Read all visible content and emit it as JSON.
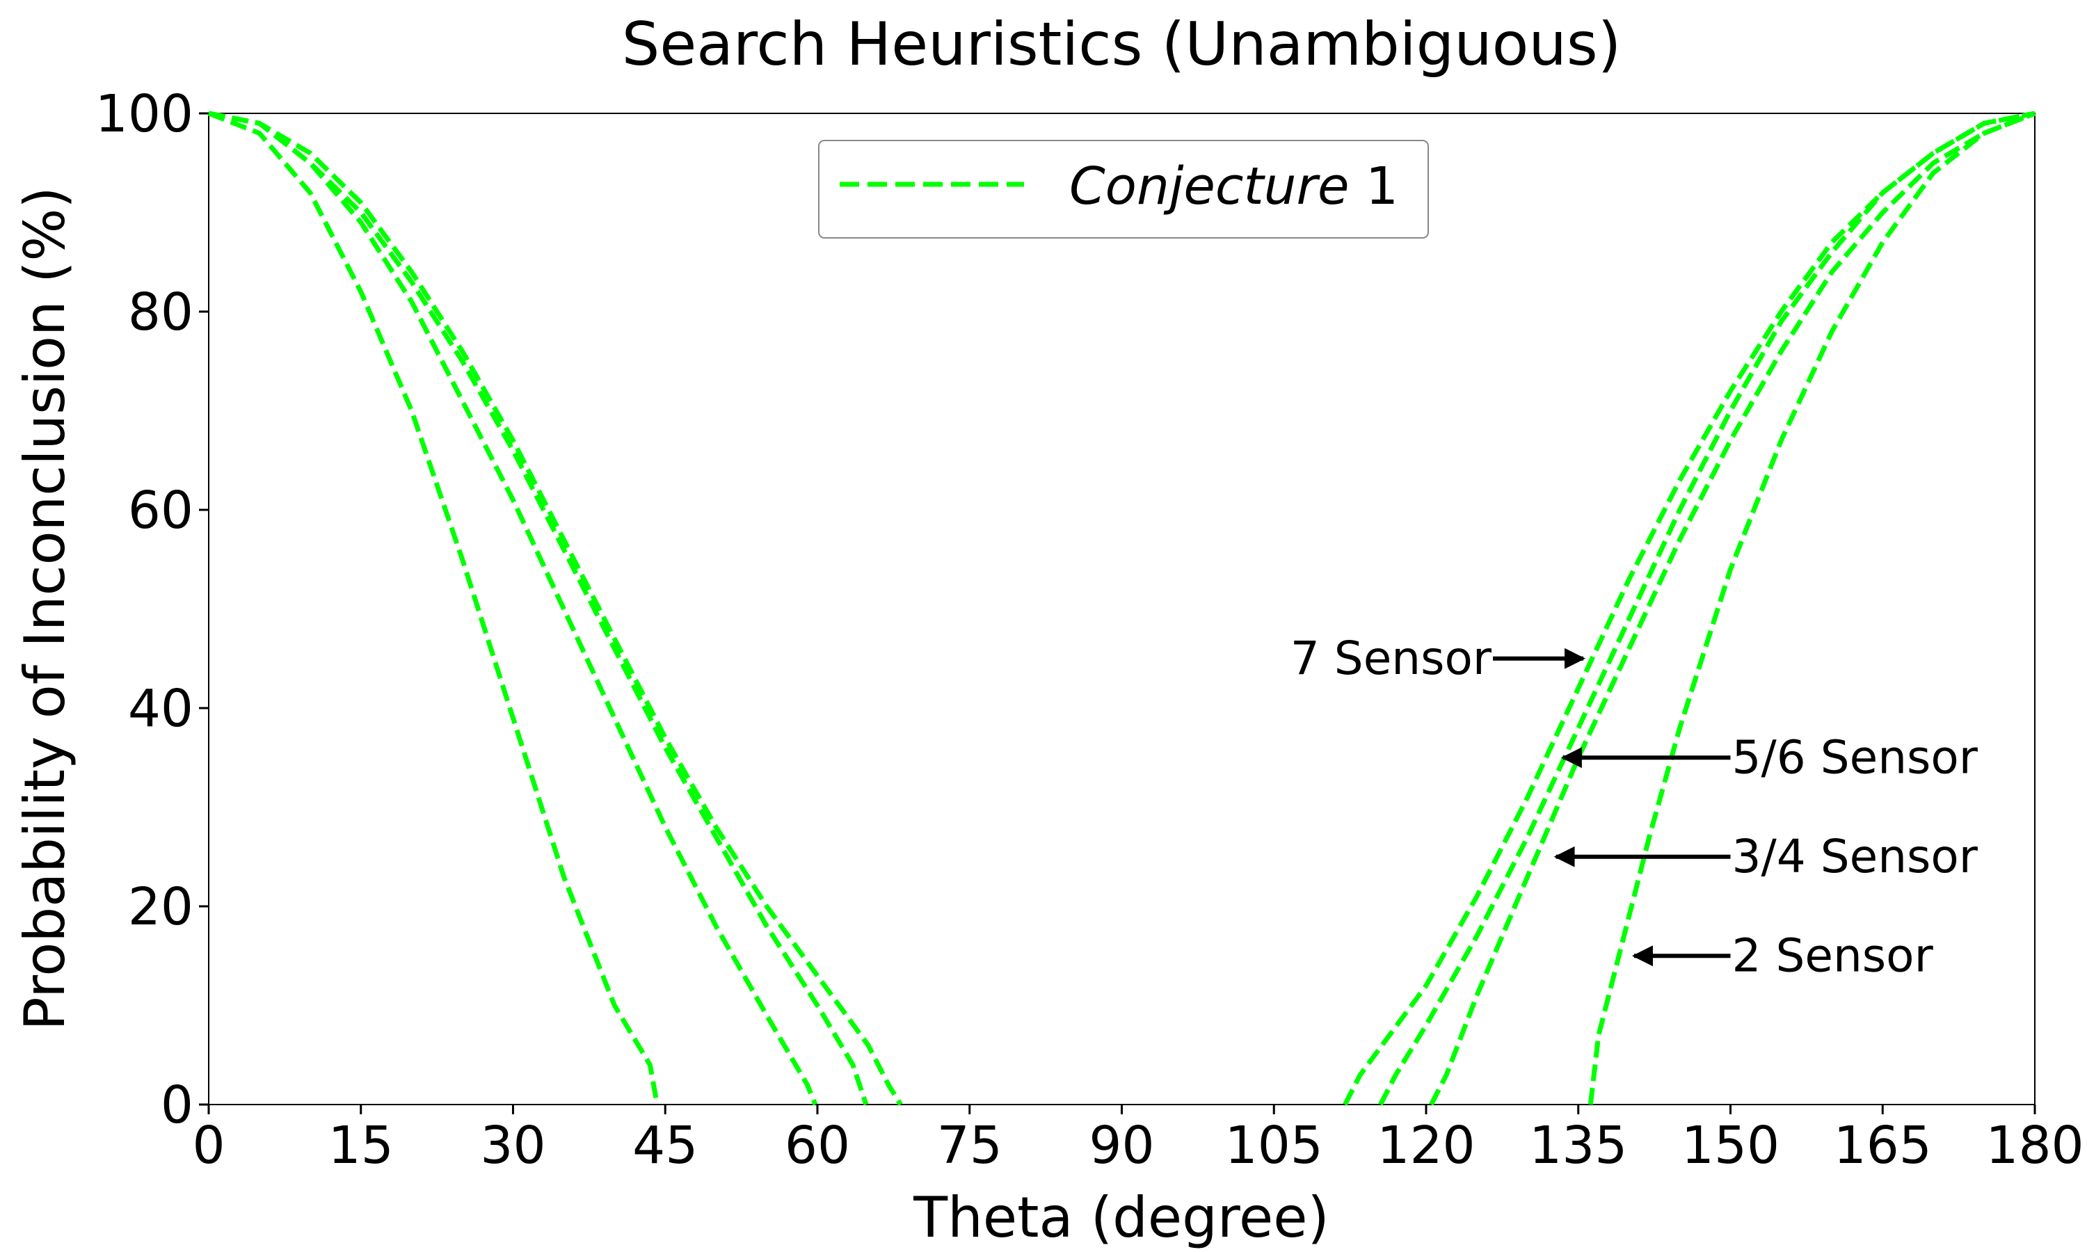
{
  "chart_data": {
    "type": "line",
    "title": "Search Heuristics (Unambiguous)",
    "xlabel": "Theta (degree)",
    "ylabel": "Probability of Inconclusion (%)",
    "xlim": [
      0,
      180
    ],
    "ylim": [
      0,
      100
    ],
    "xticks": [
      0,
      15,
      30,
      45,
      60,
      75,
      90,
      105,
      120,
      135,
      150,
      165,
      180
    ],
    "yticks": [
      0,
      20,
      40,
      60,
      80,
      100
    ],
    "grid": false,
    "legend": {
      "placement": "top-center",
      "entries": [
        {
          "italic_part": "Conjecture",
          "plain_part": " 1",
          "style": "dashed",
          "color": "#00ff00"
        }
      ]
    },
    "series_color": "#00ff00",
    "series": [
      {
        "x": [
          0,
          5,
          10,
          15,
          20,
          25,
          30,
          35,
          40,
          43.5,
          44.2
        ],
        "y": [
          100,
          98,
          92,
          82,
          70,
          55,
          39,
          23,
          10,
          4,
          0
        ]
      },
      {
        "x": [
          0,
          5,
          10,
          15,
          20,
          25,
          30,
          35,
          40,
          45,
          50,
          55,
          59,
          59.8
        ],
        "y": [
          100,
          99,
          95,
          89,
          81,
          71,
          61,
          50,
          39,
          28,
          18,
          9,
          2,
          0
        ]
      },
      {
        "x": [
          0,
          5,
          10,
          15,
          20,
          25,
          30,
          35,
          40,
          45,
          50,
          55,
          60,
          63.5,
          64.8
        ],
        "y": [
          100,
          99,
          95,
          90,
          83,
          75,
          66,
          56,
          46,
          36,
          27,
          18,
          10,
          4,
          0
        ]
      },
      {
        "x": [
          0,
          5,
          10,
          15,
          20,
          25,
          30,
          35,
          40,
          45,
          50,
          55,
          60,
          65,
          67,
          68.2
        ],
        "y": [
          100,
          99,
          96,
          91,
          84,
          76,
          67,
          57,
          47,
          37,
          28,
          20,
          13,
          6,
          2,
          0
        ]
      },
      {
        "x": [
          112,
          113.5,
          120,
          125,
          130,
          135,
          140,
          145,
          150,
          155,
          160,
          165,
          170,
          175,
          180
        ],
        "y": [
          0,
          3,
          12,
          21,
          31,
          42,
          53,
          63,
          72,
          80,
          87,
          92,
          96,
          99,
          100
        ]
      },
      {
        "x": [
          115.5,
          117,
          120,
          125,
          130,
          135,
          140,
          145,
          150,
          155,
          160,
          165,
          170,
          175,
          180
        ],
        "y": [
          0,
          3,
          8,
          17,
          27,
          38,
          49,
          60,
          70,
          79,
          86,
          92,
          96,
          99,
          100
        ]
      },
      {
        "x": [
          120.5,
          122,
          125,
          130,
          135,
          140,
          145,
          150,
          155,
          160,
          165,
          170,
          175,
          180
        ],
        "y": [
          0,
          3,
          11,
          23,
          35,
          46,
          57,
          67,
          76,
          84,
          90,
          95,
          98,
          100
        ]
      },
      {
        "x": [
          136.2,
          137,
          139,
          142,
          145,
          150,
          155,
          160,
          165,
          170,
          175,
          180
        ],
        "y": [
          0,
          7,
          15,
          27,
          38,
          54,
          67,
          78,
          87,
          94,
          98,
          100
        ]
      }
    ],
    "annotations": [
      {
        "text": "7 Sensor",
        "arrow_to": [
          135.5,
          45
        ],
        "arrow_direction": "right"
      },
      {
        "text": "5/6 Sensor",
        "arrow_to": [
          133.5,
          35
        ],
        "arrow_direction": "left"
      },
      {
        "text": "3/4 Sensor",
        "arrow_to": [
          132.8,
          25
        ],
        "arrow_direction": "left"
      },
      {
        "text": "2 Sensor",
        "arrow_to": [
          140.5,
          15
        ],
        "arrow_direction": "left"
      }
    ]
  }
}
